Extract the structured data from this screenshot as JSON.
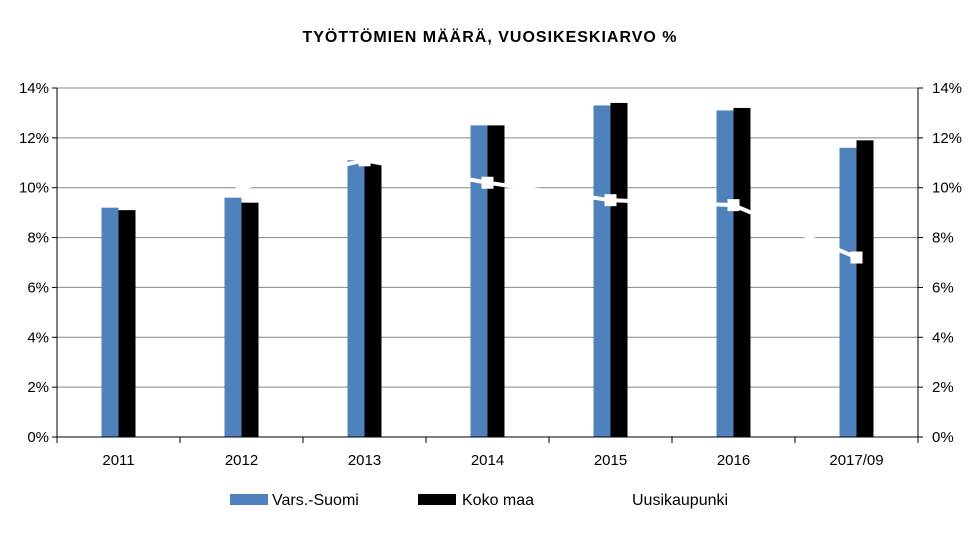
{
  "chart_data": {
    "type": "bar",
    "title": "TYÖTTÖMIEN MÄÄRÄ, VUOSIKESKIARVO %",
    "categories": [
      "2011",
      "2012",
      "2013",
      "2014",
      "2015",
      "2016",
      "2017/09"
    ],
    "series": [
      {
        "name": "Vars.-Suomi",
        "type": "bar",
        "color": "#4f81bd",
        "values": [
          9.2,
          9.6,
          11.1,
          12.5,
          13.3,
          13.1,
          11.6
        ]
      },
      {
        "name": "Koko maa",
        "type": "bar",
        "color": "#000000",
        "values": [
          9.1,
          9.4,
          11.0,
          12.5,
          13.4,
          13.2,
          11.9
        ]
      },
      {
        "name": "Uusikaupunki",
        "type": "line",
        "color": "#ffffff",
        "values": [
          null,
          10.0,
          11.1,
          10.2,
          9.5,
          9.3,
          7.2
        ]
      }
    ],
    "ylim": [
      0,
      14
    ],
    "yticks": [
      "0%",
      "2%",
      "4%",
      "6%",
      "8%",
      "10%",
      "12%",
      "14%"
    ],
    "secondary_yticks": [
      "0%",
      "2%",
      "4%",
      "6%",
      "8%",
      "10%",
      "12%",
      "14%"
    ],
    "grid": true,
    "legend": "bottom"
  }
}
